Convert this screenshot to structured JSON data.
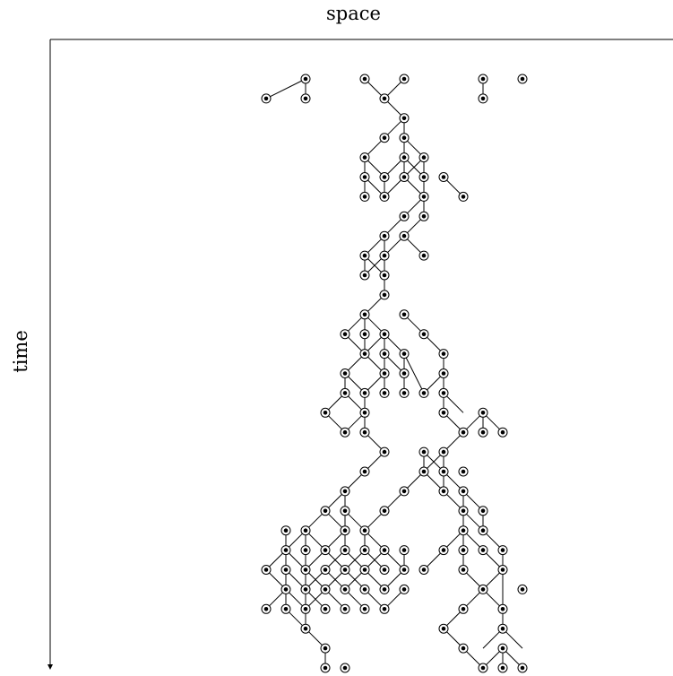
{
  "diagram": {
    "x_axis_label": "space",
    "y_axis_label": "time",
    "colors": {
      "line": "#000000",
      "node_fill": "#ffffff",
      "node_dot": "#000000"
    },
    "nodes": [
      [
        11,
        0
      ],
      [
        9,
        1
      ],
      [
        11,
        1
      ],
      [
        14,
        0
      ],
      [
        16,
        0
      ],
      [
        15,
        1
      ],
      [
        20,
        0
      ],
      [
        20,
        1
      ],
      [
        22,
        0
      ],
      [
        16,
        2
      ],
      [
        15,
        3
      ],
      [
        16,
        3
      ],
      [
        14,
        4
      ],
      [
        16,
        4
      ],
      [
        17,
        4
      ],
      [
        14,
        5
      ],
      [
        15,
        5
      ],
      [
        16,
        5
      ],
      [
        17,
        5
      ],
      [
        18,
        5
      ],
      [
        14,
        6
      ],
      [
        15,
        6
      ],
      [
        17,
        6
      ],
      [
        19,
        6
      ],
      [
        16,
        7
      ],
      [
        17,
        7
      ],
      [
        15,
        8
      ],
      [
        16,
        8
      ],
      [
        17,
        9
      ],
      [
        14,
        9
      ],
      [
        15,
        9
      ],
      [
        14,
        10
      ],
      [
        15,
        10
      ],
      [
        15,
        11
      ],
      [
        14,
        12
      ],
      [
        16,
        12
      ],
      [
        13,
        13
      ],
      [
        14,
        13
      ],
      [
        15,
        13
      ],
      [
        17,
        13
      ],
      [
        14,
        14
      ],
      [
        15,
        14
      ],
      [
        16,
        14
      ],
      [
        18,
        14
      ],
      [
        13,
        15
      ],
      [
        15,
        15
      ],
      [
        16,
        15
      ],
      [
        18,
        15
      ],
      [
        13,
        16
      ],
      [
        14,
        16
      ],
      [
        15,
        16
      ],
      [
        16,
        16
      ],
      [
        17,
        16
      ],
      [
        18,
        16
      ],
      [
        12,
        17
      ],
      [
        14,
        17
      ],
      [
        18,
        17
      ],
      [
        20,
        17
      ],
      [
        13,
        18
      ],
      [
        14,
        18
      ],
      [
        19,
        18
      ],
      [
        20,
        18
      ],
      [
        21,
        18
      ],
      [
        15,
        19
      ],
      [
        17,
        19
      ],
      [
        18,
        19
      ],
      [
        14,
        20
      ],
      [
        17,
        20
      ],
      [
        18,
        20
      ],
      [
        19,
        20
      ],
      [
        13,
        21
      ],
      [
        16,
        21
      ],
      [
        18,
        21
      ],
      [
        19,
        21
      ],
      [
        12,
        22
      ],
      [
        13,
        22
      ],
      [
        15,
        22
      ],
      [
        19,
        22
      ],
      [
        20,
        22
      ],
      [
        10,
        23
      ],
      [
        11,
        23
      ],
      [
        13,
        23
      ],
      [
        14,
        23
      ],
      [
        19,
        23
      ],
      [
        20,
        23
      ],
      [
        10,
        24
      ],
      [
        11,
        24
      ],
      [
        12,
        24
      ],
      [
        13,
        24
      ],
      [
        14,
        24
      ],
      [
        15,
        24
      ],
      [
        16,
        24
      ],
      [
        18,
        24
      ],
      [
        19,
        24
      ],
      [
        20,
        24
      ],
      [
        21,
        24
      ],
      [
        9,
        25
      ],
      [
        10,
        25
      ],
      [
        11,
        25
      ],
      [
        12,
        25
      ],
      [
        13,
        25
      ],
      [
        14,
        25
      ],
      [
        15,
        25
      ],
      [
        16,
        25
      ],
      [
        17,
        25
      ],
      [
        19,
        25
      ],
      [
        21,
        25
      ],
      [
        10,
        26
      ],
      [
        11,
        26
      ],
      [
        12,
        26
      ],
      [
        13,
        26
      ],
      [
        14,
        26
      ],
      [
        15,
        26
      ],
      [
        16,
        26
      ],
      [
        20,
        26
      ],
      [
        22,
        26
      ],
      [
        9,
        27
      ],
      [
        10,
        27
      ],
      [
        11,
        27
      ],
      [
        12,
        27
      ],
      [
        13,
        27
      ],
      [
        14,
        27
      ],
      [
        15,
        27
      ],
      [
        19,
        27
      ],
      [
        21,
        27
      ],
      [
        11,
        28
      ],
      [
        18,
        28
      ],
      [
        21,
        28
      ],
      [
        12,
        29
      ],
      [
        19,
        29
      ],
      [
        21,
        29
      ],
      [
        12,
        30
      ],
      [
        13,
        30
      ],
      [
        20,
        30
      ],
      [
        21,
        30
      ],
      [
        22,
        30
      ]
    ],
    "edges": [
      [
        11,
        0,
        9,
        1
      ],
      [
        11,
        0,
        11,
        1
      ],
      [
        14,
        0,
        15,
        1
      ],
      [
        16,
        0,
        15,
        1
      ],
      [
        20,
        0,
        20,
        1
      ],
      [
        15,
        1,
        16,
        2
      ],
      [
        16,
        2,
        15,
        3
      ],
      [
        16,
        2,
        16,
        3
      ],
      [
        15,
        3,
        14,
        4
      ],
      [
        16,
        3,
        16,
        4
      ],
      [
        16,
        3,
        17,
        4
      ],
      [
        14,
        4,
        14,
        5
      ],
      [
        14,
        4,
        15,
        5
      ],
      [
        16,
        4,
        15,
        5
      ],
      [
        16,
        4,
        17,
        5
      ],
      [
        17,
        4,
        16,
        5
      ],
      [
        17,
        4,
        17,
        5
      ],
      [
        16,
        4,
        16,
        5
      ],
      [
        14,
        5,
        15,
        6
      ],
      [
        14,
        5,
        14,
        6
      ],
      [
        15,
        5,
        15,
        6
      ],
      [
        16,
        5,
        17,
        6
      ],
      [
        17,
        5,
        17,
        6
      ],
      [
        18,
        5,
        19,
        6
      ],
      [
        16,
        5,
        15,
        6
      ],
      [
        17,
        6,
        16,
        7
      ],
      [
        17,
        6,
        17,
        7
      ],
      [
        16,
        7,
        15,
        8
      ],
      [
        17,
        7,
        16,
        8
      ],
      [
        16,
        8,
        17,
        9
      ],
      [
        15,
        8,
        14,
        9
      ],
      [
        15,
        8,
        15,
        9
      ],
      [
        16,
        8,
        15,
        9
      ],
      [
        14,
        9,
        14,
        10
      ],
      [
        15,
        9,
        14,
        10
      ],
      [
        14,
        9,
        15,
        10
      ],
      [
        15,
        9,
        15,
        10
      ],
      [
        15,
        10,
        15,
        11
      ],
      [
        15,
        11,
        14,
        12
      ],
      [
        14,
        12,
        13,
        13
      ],
      [
        14,
        12,
        14,
        13
      ],
      [
        14,
        12,
        15,
        13
      ],
      [
        16,
        12,
        17,
        13
      ],
      [
        13,
        13,
        14,
        14
      ],
      [
        14,
        13,
        14,
        14
      ],
      [
        15,
        13,
        15,
        14
      ],
      [
        15,
        13,
        16,
        14
      ],
      [
        17,
        13,
        18,
        14
      ],
      [
        15,
        13,
        14,
        14
      ],
      [
        14,
        14,
        13,
        15
      ],
      [
        14,
        14,
        15,
        15
      ],
      [
        15,
        14,
        15,
        15
      ],
      [
        15,
        14,
        16,
        15
      ],
      [
        16,
        14,
        16,
        15
      ],
      [
        18,
        14,
        18,
        15
      ],
      [
        16,
        14,
        17,
        16
      ],
      [
        13,
        15,
        13,
        16
      ],
      [
        13,
        15,
        14,
        16
      ],
      [
        15,
        15,
        15,
        16
      ],
      [
        15,
        15,
        14,
        16
      ],
      [
        16,
        15,
        16,
        16
      ],
      [
        18,
        15,
        18,
        16
      ],
      [
        18,
        15,
        17,
        16
      ],
      [
        13,
        16,
        12,
        17
      ],
      [
        13,
        16,
        14,
        17
      ],
      [
        14,
        16,
        14,
        17
      ],
      [
        18,
        16,
        18,
        17
      ],
      [
        18,
        16,
        19,
        17
      ],
      [
        12,
        17,
        13,
        18
      ],
      [
        14,
        17,
        13,
        18
      ],
      [
        14,
        17,
        14,
        18
      ],
      [
        18,
        17,
        19,
        18
      ],
      [
        18,
        17,
        18,
        16
      ],
      [
        20,
        17,
        20,
        18
      ],
      [
        20,
        17,
        21,
        18
      ],
      [
        19,
        18,
        20,
        17
      ],
      [
        14,
        18,
        15,
        19
      ],
      [
        18,
        19,
        19,
        18
      ],
      [
        18,
        19,
        17,
        20
      ],
      [
        18,
        19,
        18,
        20
      ],
      [
        17,
        19,
        18,
        20
      ],
      [
        17,
        19,
        17,
        20
      ],
      [
        15,
        19,
        14,
        20
      ],
      [
        14,
        20,
        13,
        21
      ],
      [
        17,
        20,
        16,
        21
      ],
      [
        18,
        20,
        19,
        21
      ],
      [
        18,
        20,
        18,
        21
      ],
      [
        17,
        20,
        18,
        21
      ],
      [
        13,
        21,
        12,
        22
      ],
      [
        13,
        21,
        13,
        22
      ],
      [
        16,
        21,
        15,
        22
      ],
      [
        19,
        21,
        19,
        22
      ],
      [
        19,
        21,
        20,
        22
      ],
      [
        18,
        21,
        19,
        22
      ],
      [
        12,
        22,
        11,
        23
      ],
      [
        12,
        22,
        13,
        23
      ],
      [
        13,
        22,
        13,
        23
      ],
      [
        13,
        22,
        14,
        23
      ],
      [
        15,
        22,
        14,
        23
      ],
      [
        19,
        22,
        19,
        23
      ],
      [
        19,
        22,
        20,
        23
      ],
      [
        20,
        22,
        20,
        23
      ],
      [
        11,
        23,
        10,
        24
      ],
      [
        11,
        23,
        11,
        24
      ],
      [
        11,
        23,
        12,
        24
      ],
      [
        13,
        23,
        13,
        24
      ],
      [
        13,
        23,
        12,
        24
      ],
      [
        14,
        23,
        14,
        24
      ],
      [
        14,
        23,
        15,
        24
      ],
      [
        10,
        23,
        10,
        24
      ],
      [
        19,
        23,
        18,
        24
      ],
      [
        19,
        23,
        19,
        24
      ],
      [
        19,
        23,
        20,
        24
      ],
      [
        20,
        23,
        21,
        24
      ],
      [
        18,
        24,
        17,
        25
      ],
      [
        16,
        24,
        16,
        25
      ],
      [
        15,
        24,
        16,
        25
      ],
      [
        10,
        24,
        9,
        25
      ],
      [
        10,
        24,
        10,
        25
      ],
      [
        10,
        24,
        11,
        25
      ],
      [
        11,
        24,
        11,
        25
      ],
      [
        12,
        24,
        11,
        25
      ],
      [
        12,
        24,
        13,
        25
      ],
      [
        13,
        24,
        12,
        25
      ],
      [
        13,
        24,
        14,
        25
      ],
      [
        14,
        24,
        13,
        25
      ],
      [
        14,
        24,
        15,
        25
      ],
      [
        15,
        24,
        14,
        25
      ],
      [
        19,
        24,
        19,
        25
      ],
      [
        20,
        24,
        21,
        25
      ],
      [
        21,
        24,
        21,
        25
      ],
      [
        9,
        25,
        10,
        26
      ],
      [
        10,
        25,
        10,
        26
      ],
      [
        11,
        25,
        11,
        26
      ],
      [
        11,
        25,
        12,
        26
      ],
      [
        12,
        25,
        11,
        26
      ],
      [
        12,
        25,
        13,
        26
      ],
      [
        13,
        25,
        12,
        26
      ],
      [
        13,
        25,
        14,
        26
      ],
      [
        14,
        25,
        13,
        26
      ],
      [
        14,
        25,
        15,
        26
      ],
      [
        16,
        25,
        15,
        26
      ],
      [
        10,
        25,
        11,
        26
      ],
      [
        21,
        25,
        20,
        26
      ],
      [
        21,
        25,
        21,
        27
      ],
      [
        19,
        25,
        20,
        26
      ],
      [
        10,
        26,
        9,
        27
      ],
      [
        10,
        26,
        10,
        27
      ],
      [
        10,
        26,
        11,
        27
      ],
      [
        11,
        26,
        11,
        27
      ],
      [
        11,
        26,
        12,
        27
      ],
      [
        12,
        26,
        13,
        27
      ],
      [
        13,
        26,
        14,
        27
      ],
      [
        14,
        26,
        15,
        27
      ],
      [
        16,
        26,
        15,
        27
      ],
      [
        12,
        26,
        11,
        27
      ],
      [
        20,
        26,
        19,
        27
      ],
      [
        20,
        26,
        21,
        27
      ],
      [
        10,
        27,
        11,
        28
      ],
      [
        11,
        27,
        11,
        28
      ],
      [
        19,
        27,
        18,
        28
      ],
      [
        21,
        27,
        21,
        28
      ],
      [
        21,
        28,
        22,
        29
      ],
      [
        21,
        28,
        20,
        29
      ],
      [
        11,
        28,
        12,
        29
      ],
      [
        12,
        29,
        12,
        30
      ],
      [
        18,
        28,
        19,
        29
      ],
      [
        19,
        29,
        20,
        30
      ],
      [
        21,
        29,
        20,
        30
      ],
      [
        21,
        29,
        21,
        30
      ],
      [
        21,
        29,
        22,
        30
      ]
    ]
  }
}
